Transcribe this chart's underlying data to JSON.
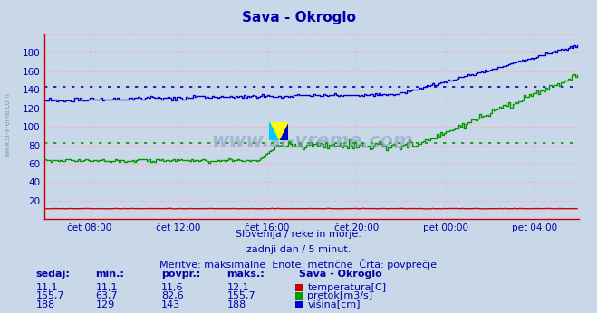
{
  "title": "Sava - Okroglo",
  "title_color": "#0000aa",
  "bg_color": "#c8d8e8",
  "plot_bg_color": "#c8d8e8",
  "xlim": [
    0,
    288
  ],
  "ylim": [
    0,
    200
  ],
  "yticks": [
    20,
    40,
    60,
    80,
    100,
    120,
    140,
    160,
    180
  ],
  "grid_color": "#ff8888",
  "grid_color_minor": "#ffbbbb",
  "avg_visina": 143,
  "avg_pretok": 82.6,
  "visina_color": "#0000cc",
  "pretok_color": "#009900",
  "temperatura_color": "#cc0000",
  "avg_line_color_visina": "#0000cc",
  "avg_line_color_pretok": "#009900",
  "xtick_labels": [
    "čet 08:00",
    "čet 12:00",
    "čet 16:00",
    "čet 20:00",
    "pet 00:00",
    "pet 04:00"
  ],
  "xtick_positions": [
    24,
    72,
    120,
    168,
    216,
    264
  ],
  "subtitle1": "Slovenija / reke in morje.",
  "subtitle2": "zadnji dan / 5 minut.",
  "subtitle3": "Meritve: maksimalne  Enote: metrične  Črta: povprečje",
  "watermark": "www.si-vreme.com",
  "sidebar_text": "www.si-vreme.com",
  "table_headers": [
    "sedaj:",
    "min.:",
    "povpr.:",
    "maks.:"
  ],
  "table_col0": [
    "11,1",
    "155,7",
    "188"
  ],
  "table_col1": [
    "11,1",
    "63,7",
    "129"
  ],
  "table_col2": [
    "11,6",
    "82,6",
    "143"
  ],
  "table_col3": [
    "12,1",
    "155,7",
    "188"
  ],
  "legend_title": "Sava - Okroglo",
  "legend_items": [
    "temperatura[C]",
    "pretok[m3/s]",
    "višina[cm]"
  ],
  "legend_colors": [
    "#cc0000",
    "#009900",
    "#0000cc"
  ],
  "visina_start": 129,
  "visina_mid": 133,
  "visina_end": 188,
  "pretok_start": 63.7,
  "pretok_flat": 80,
  "pretok_end": 155.7
}
